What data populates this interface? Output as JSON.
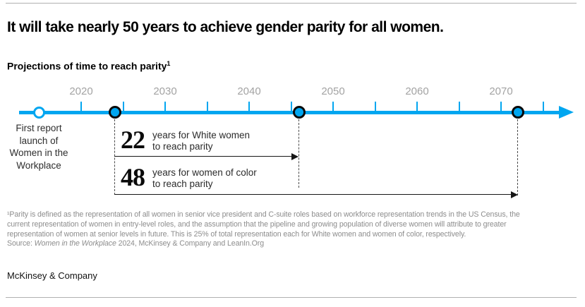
{
  "header": {
    "title": "It will take nearly 50 years to achieve gender parity for all women.",
    "subtitle": "Projections of time to reach parity",
    "subtitle_footnote_marker": "1"
  },
  "chart_data": {
    "type": "timeline",
    "title": "Projections of time to reach parity",
    "x_axis": {
      "tick_years": [
        2020,
        2025,
        2030,
        2035,
        2040,
        2045,
        2050,
        2055,
        2060,
        2065,
        2070,
        2075
      ],
      "label_years": [
        2020,
        2030,
        2040,
        2050,
        2060,
        2070
      ],
      "visible_range": [
        2013,
        2077
      ]
    },
    "events": [
      {
        "year": 2015,
        "marker": "open",
        "label": "First report launch of Women in the Workplace"
      },
      {
        "year": 2024,
        "marker": "filled"
      },
      {
        "year": 2046,
        "marker": "filled"
      },
      {
        "year": 2072,
        "marker": "filled"
      }
    ],
    "spans": [
      {
        "from_year": 2024,
        "to_year": 2046,
        "years": 22,
        "label_lines": [
          "years for White women",
          "to reach parity"
        ]
      },
      {
        "from_year": 2024,
        "to_year": 2072,
        "years": 48,
        "label_lines": [
          "years for women of color",
          "to reach parity"
        ]
      }
    ],
    "colors": {
      "timeline_blue": "#00a6f0",
      "marker_ring": "#0a0a0a",
      "year_label_gray": "#a3a3a3"
    }
  },
  "footnotes": {
    "lines": [
      "¹Parity is defined as the representation of all women in senior vice president and C-suite roles based on workforce representation trends in the US Census, the",
      "current representation of women in entry-level roles, and the assumption that the pipeline and growing population of diverse women will attribute to greater",
      "representation of women at senior levels in future. This is 25% of total representation each for White women and women of color, respectively."
    ],
    "source_prefix": "Source: ",
    "source_italic": "Women in the Workplace",
    "source_suffix": " 2024, McKinsey & Company and LeanIn.Org"
  },
  "footer": {
    "brand": "McKinsey & Company"
  }
}
